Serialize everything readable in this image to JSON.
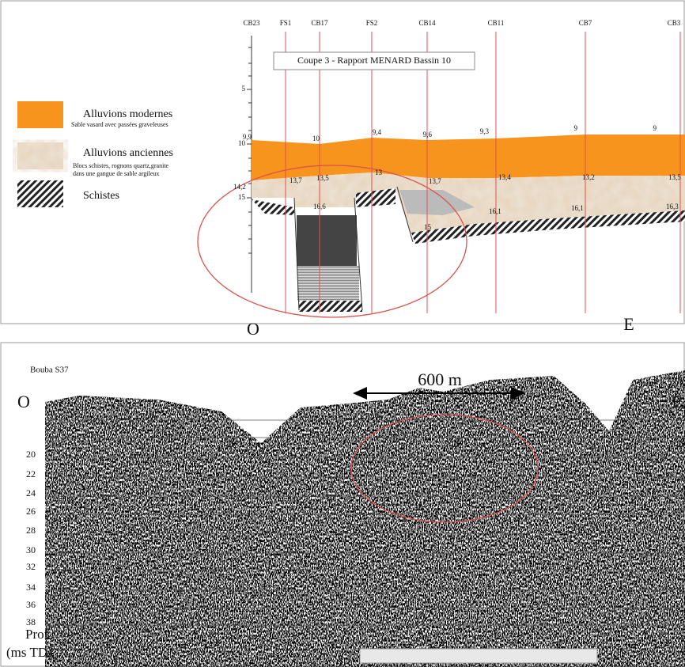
{
  "section": {
    "title": "Coupe 3 - Rapport  MENARD Bassin 10",
    "boreholes": [
      "CB23",
      "FS1",
      "CB17",
      "FS2",
      "CB14",
      "CB11",
      "CB7",
      "CB3"
    ],
    "depth_ticks": [
      "5",
      "10",
      "15"
    ],
    "top_depths": [
      "9,9",
      "10",
      "9,4",
      "9,6",
      "9,3",
      "9",
      "9"
    ],
    "base_alluvium_depths": [
      "14,2",
      "13,7",
      "13,5",
      "13",
      "13,7",
      "13,4",
      "13,2",
      "13,5"
    ],
    "schist_depths": [
      "16,6",
      "15",
      "16,1",
      "16,1",
      "16,3"
    ],
    "west": "O",
    "east": "E"
  },
  "legend": [
    {
      "label": "Alluvions modernes",
      "description": [
        "Sable vasard avec passées graveleuses"
      ]
    },
    {
      "label": "Alluvions anciennes",
      "description": [
        "Blocs schistes, rognons quartz,granite",
        "dans une gangue de sable argileux"
      ]
    },
    {
      "label": "Schistes",
      "description": []
    }
  ],
  "seismic": {
    "title": "Bouba S37",
    "scale": "600 m",
    "west": "O",
    "east": "E",
    "depth_ticks": [
      "20",
      "22",
      "24",
      "26",
      "28",
      "30",
      "32",
      "34",
      "36",
      "38"
    ],
    "axis_label": [
      "Prof",
      "(ms TD)"
    ]
  }
}
